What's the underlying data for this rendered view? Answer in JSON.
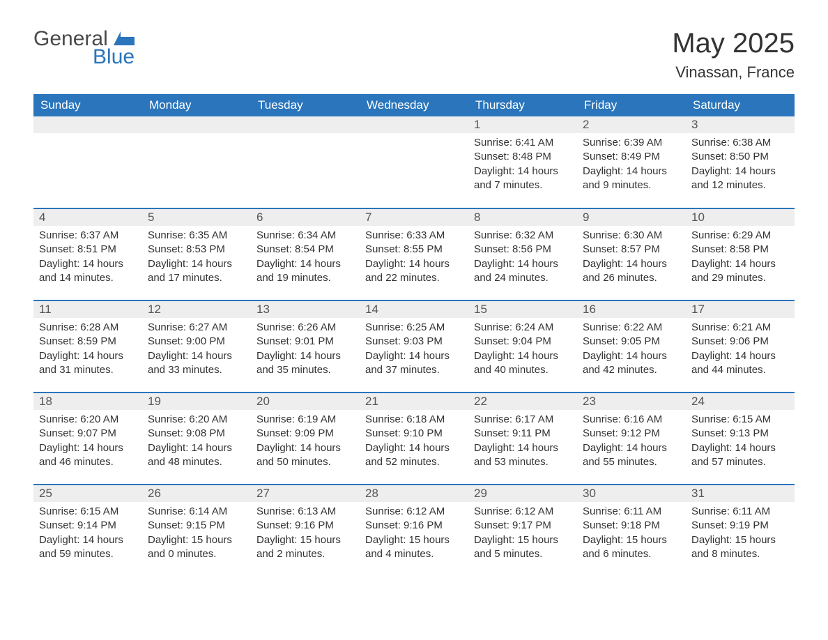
{
  "brand": {
    "general": "General",
    "blue": "Blue",
    "accent_color": "#2a75bb"
  },
  "title": "May 2025",
  "location": "Vinassan, France",
  "colors": {
    "header_bg": "#2a75bb",
    "header_text": "#ffffff",
    "daynum_bg": "#eeeeee",
    "row_border": "#2a75bb",
    "body_text": "#333333",
    "page_bg": "#ffffff"
  },
  "day_headers": [
    "Sunday",
    "Monday",
    "Tuesday",
    "Wednesday",
    "Thursday",
    "Friday",
    "Saturday"
  ],
  "weeks": [
    [
      null,
      null,
      null,
      null,
      {
        "n": "1",
        "sunrise": "6:41 AM",
        "sunset": "8:48 PM",
        "daylight": "14 hours and 7 minutes."
      },
      {
        "n": "2",
        "sunrise": "6:39 AM",
        "sunset": "8:49 PM",
        "daylight": "14 hours and 9 minutes."
      },
      {
        "n": "3",
        "sunrise": "6:38 AM",
        "sunset": "8:50 PM",
        "daylight": "14 hours and 12 minutes."
      }
    ],
    [
      {
        "n": "4",
        "sunrise": "6:37 AM",
        "sunset": "8:51 PM",
        "daylight": "14 hours and 14 minutes."
      },
      {
        "n": "5",
        "sunrise": "6:35 AM",
        "sunset": "8:53 PM",
        "daylight": "14 hours and 17 minutes."
      },
      {
        "n": "6",
        "sunrise": "6:34 AM",
        "sunset": "8:54 PM",
        "daylight": "14 hours and 19 minutes."
      },
      {
        "n": "7",
        "sunrise": "6:33 AM",
        "sunset": "8:55 PM",
        "daylight": "14 hours and 22 minutes."
      },
      {
        "n": "8",
        "sunrise": "6:32 AM",
        "sunset": "8:56 PM",
        "daylight": "14 hours and 24 minutes."
      },
      {
        "n": "9",
        "sunrise": "6:30 AM",
        "sunset": "8:57 PM",
        "daylight": "14 hours and 26 minutes."
      },
      {
        "n": "10",
        "sunrise": "6:29 AM",
        "sunset": "8:58 PM",
        "daylight": "14 hours and 29 minutes."
      }
    ],
    [
      {
        "n": "11",
        "sunrise": "6:28 AM",
        "sunset": "8:59 PM",
        "daylight": "14 hours and 31 minutes."
      },
      {
        "n": "12",
        "sunrise": "6:27 AM",
        "sunset": "9:00 PM",
        "daylight": "14 hours and 33 minutes."
      },
      {
        "n": "13",
        "sunrise": "6:26 AM",
        "sunset": "9:01 PM",
        "daylight": "14 hours and 35 minutes."
      },
      {
        "n": "14",
        "sunrise": "6:25 AM",
        "sunset": "9:03 PM",
        "daylight": "14 hours and 37 minutes."
      },
      {
        "n": "15",
        "sunrise": "6:24 AM",
        "sunset": "9:04 PM",
        "daylight": "14 hours and 40 minutes."
      },
      {
        "n": "16",
        "sunrise": "6:22 AM",
        "sunset": "9:05 PM",
        "daylight": "14 hours and 42 minutes."
      },
      {
        "n": "17",
        "sunrise": "6:21 AM",
        "sunset": "9:06 PM",
        "daylight": "14 hours and 44 minutes."
      }
    ],
    [
      {
        "n": "18",
        "sunrise": "6:20 AM",
        "sunset": "9:07 PM",
        "daylight": "14 hours and 46 minutes."
      },
      {
        "n": "19",
        "sunrise": "6:20 AM",
        "sunset": "9:08 PM",
        "daylight": "14 hours and 48 minutes."
      },
      {
        "n": "20",
        "sunrise": "6:19 AM",
        "sunset": "9:09 PM",
        "daylight": "14 hours and 50 minutes."
      },
      {
        "n": "21",
        "sunrise": "6:18 AM",
        "sunset": "9:10 PM",
        "daylight": "14 hours and 52 minutes."
      },
      {
        "n": "22",
        "sunrise": "6:17 AM",
        "sunset": "9:11 PM",
        "daylight": "14 hours and 53 minutes."
      },
      {
        "n": "23",
        "sunrise": "6:16 AM",
        "sunset": "9:12 PM",
        "daylight": "14 hours and 55 minutes."
      },
      {
        "n": "24",
        "sunrise": "6:15 AM",
        "sunset": "9:13 PM",
        "daylight": "14 hours and 57 minutes."
      }
    ],
    [
      {
        "n": "25",
        "sunrise": "6:15 AM",
        "sunset": "9:14 PM",
        "daylight": "14 hours and 59 minutes."
      },
      {
        "n": "26",
        "sunrise": "6:14 AM",
        "sunset": "9:15 PM",
        "daylight": "15 hours and 0 minutes."
      },
      {
        "n": "27",
        "sunrise": "6:13 AM",
        "sunset": "9:16 PM",
        "daylight": "15 hours and 2 minutes."
      },
      {
        "n": "28",
        "sunrise": "6:12 AM",
        "sunset": "9:16 PM",
        "daylight": "15 hours and 4 minutes."
      },
      {
        "n": "29",
        "sunrise": "6:12 AM",
        "sunset": "9:17 PM",
        "daylight": "15 hours and 5 minutes."
      },
      {
        "n": "30",
        "sunrise": "6:11 AM",
        "sunset": "9:18 PM",
        "daylight": "15 hours and 6 minutes."
      },
      {
        "n": "31",
        "sunrise": "6:11 AM",
        "sunset": "9:19 PM",
        "daylight": "15 hours and 8 minutes."
      }
    ]
  ],
  "labels": {
    "sunrise": "Sunrise:",
    "sunset": "Sunset:",
    "daylight": "Daylight:"
  }
}
